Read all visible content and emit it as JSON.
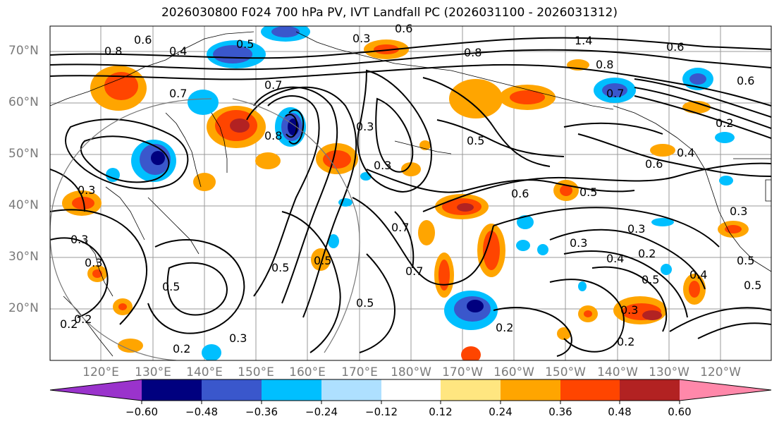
{
  "title": "2026030800 F024 700 hPa PV, IVT Landfall PC (2026031100 - 2026031312)",
  "lat_labels": [
    "70°N",
    "60°N",
    "50°N",
    "40°N",
    "30°N",
    "20°N"
  ],
  "lon_labels": [
    "120°E",
    "130°E",
    "140°E",
    "150°E",
    "160°E",
    "170°E",
    "180°W",
    "170°W",
    "160°W",
    "150°W",
    "140°W",
    "130°W",
    "120°W"
  ],
  "colorbar": {
    "ticks": [
      "−0.60",
      "−0.48",
      "−0.36",
      "−0.24",
      "−0.12",
      "0.12",
      "0.24",
      "0.36",
      "0.48",
      "0.60"
    ],
    "colors": [
      "#9a33cc",
      "#00007f",
      "#3a57cc",
      "#00bfff",
      "#aee0ff",
      "#ffffff",
      "#ffe680",
      "#ffa500",
      "#ff4500",
      "#b22222",
      "#ff88aa"
    ]
  },
  "contour_labels": [
    "0.8",
    "0.6",
    "0.4",
    "0.5",
    "0.3",
    "0.7",
    "0.6",
    "1.4",
    "0.8",
    "0.6",
    "0.8",
    "0.7",
    "0.3",
    "0.8",
    "0.5",
    "0.7",
    "0.2",
    "0.4",
    "0.3",
    "0.6",
    "0.5",
    "0.3",
    "0.3",
    "0.7",
    "0.7",
    "0.4",
    "0.2",
    "0.3",
    "0.3",
    "0.5",
    "0.5",
    "0.5",
    "0.5",
    "0.3",
    "0.2",
    "0.3",
    "0.4",
    "0.5",
    "0.2",
    "0.3",
    "0.3",
    "0.2",
    "0.2",
    "0.2",
    "0.5",
    "0.6",
    "0.5",
    "0.6"
  ]
}
